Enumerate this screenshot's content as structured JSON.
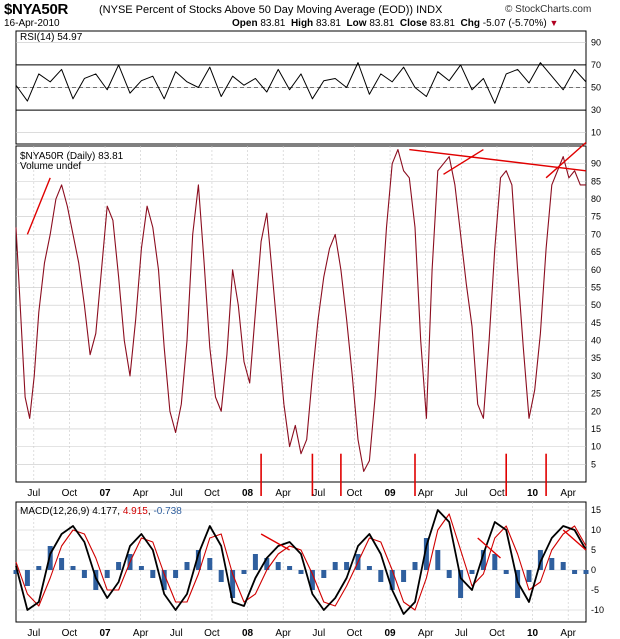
{
  "header": {
    "symbol": "$NYA50R",
    "description": "(NYSE Percent of Stocks Above 50 Day Moving Average (EOD))  INDX",
    "date": "16-Apr-2010",
    "open_label": "Open",
    "open": "83.81",
    "high_label": "High",
    "high": "83.81",
    "low_label": "Low",
    "low": "83.81",
    "close_label": "Close",
    "close": "83.81",
    "chg_label": "Chg",
    "chg": "-5.07 (-5.70%)",
    "copyright": "© StockCharts.com"
  },
  "colors": {
    "price_line": "#8b0d1f",
    "annotation": "#e00000",
    "macd_line": "#000000",
    "signal_line": "#d00000",
    "histogram": "#2f5f9e",
    "grid": "#c8c8c8"
  },
  "chart_data": [
    {
      "type": "line",
      "panel": "RSI",
      "label": "RSI(14) 54.97",
      "ylim": [
        0,
        100
      ],
      "y_ticks": [
        10,
        30,
        50,
        70,
        90
      ],
      "reference_lines": [
        30,
        50,
        70
      ],
      "series": [
        {
          "x": [
            0,
            2,
            4,
            6,
            8,
            10,
            12,
            14,
            16,
            18,
            20,
            22,
            24,
            26,
            28,
            30,
            32,
            34,
            36,
            38,
            40,
            42,
            44,
            46,
            48,
            50,
            52,
            54,
            56,
            58,
            60,
            62,
            64,
            66,
            68,
            70,
            72,
            74,
            76,
            78,
            80,
            82,
            84,
            86,
            88,
            90,
            92,
            94,
            96,
            98,
            100
          ],
          "values": [
            52,
            38,
            62,
            55,
            66,
            40,
            58,
            62,
            48,
            70,
            45,
            56,
            60,
            40,
            64,
            55,
            50,
            68,
            42,
            60,
            52,
            58,
            46,
            66,
            48,
            62,
            40,
            56,
            58,
            50,
            72,
            44,
            62,
            55,
            68,
            50,
            42,
            64,
            56,
            70,
            48,
            58,
            36,
            62,
            66,
            54,
            72,
            60,
            48,
            66,
            55
          ]
        }
      ]
    },
    {
      "type": "line",
      "panel": "price",
      "label": "$NYA50R (Daily) 83.81",
      "legend": "Volume undef",
      "ylim": [
        0,
        95
      ],
      "y_ticks": [
        5,
        10,
        15,
        20,
        25,
        30,
        35,
        40,
        45,
        50,
        55,
        60,
        65,
        70,
        75,
        80,
        85,
        90
      ],
      "x_ticks": [
        "Jul",
        "Oct",
        "07",
        "Apr",
        "Jul",
        "Oct",
        "08",
        "Apr",
        "Jul",
        "Oct",
        "09",
        "Apr",
        "Jul",
        "Oct",
        "10",
        "Apr"
      ],
      "series": [
        {
          "x": [
            0,
            0.8,
            1.6,
            2.4,
            3.2,
            4,
            5,
            6,
            7,
            8,
            9,
            10,
            11,
            12,
            13,
            14,
            15,
            16,
            17,
            18,
            19,
            20,
            21,
            22,
            23,
            24,
            25,
            26,
            27,
            28,
            29,
            30,
            31,
            32,
            33,
            34,
            35,
            36,
            37,
            38,
            39,
            40,
            41,
            42,
            43,
            44,
            45,
            46,
            47,
            48,
            49,
            50,
            51,
            52,
            53,
            54,
            55,
            56,
            57,
            58,
            59,
            60,
            61,
            62,
            63,
            64,
            65,
            66,
            67,
            68,
            69,
            70,
            71,
            72,
            73,
            74,
            75,
            76,
            77,
            78,
            79,
            80,
            81,
            82,
            83,
            84,
            85,
            86,
            87,
            88,
            89,
            90,
            91,
            92,
            93,
            94,
            95,
            96,
            97,
            98,
            99,
            100
          ],
          "values": [
            72,
            48,
            24,
            18,
            30,
            48,
            62,
            70,
            80,
            84,
            78,
            70,
            62,
            50,
            36,
            42,
            60,
            78,
            74,
            58,
            40,
            30,
            46,
            66,
            78,
            72,
            60,
            38,
            20,
            14,
            22,
            40,
            70,
            84,
            62,
            38,
            24,
            20,
            36,
            60,
            50,
            34,
            28,
            48,
            68,
            76,
            58,
            40,
            22,
            10,
            16,
            8,
            12,
            30,
            46,
            58,
            66,
            70,
            60,
            46,
            30,
            12,
            3,
            6,
            24,
            48,
            72,
            90,
            94,
            88,
            86,
            72,
            40,
            18,
            60,
            88,
            90,
            92,
            84,
            70,
            56,
            44,
            22,
            18,
            40,
            66,
            86,
            88,
            84,
            60,
            38,
            18,
            26,
            42,
            66,
            84,
            88,
            92,
            86,
            88,
            84,
            84
          ]
        }
      ],
      "annotations": [
        {
          "kind": "trendline",
          "from": [
            2,
            70
          ],
          "to": [
            6,
            86
          ]
        },
        {
          "kind": "trendline",
          "from": [
            69,
            94
          ],
          "to": [
            100,
            88
          ]
        },
        {
          "kind": "trendline",
          "from": [
            75,
            87
          ],
          "to": [
            82,
            94
          ]
        },
        {
          "kind": "trendline",
          "from": [
            93,
            86
          ],
          "to": [
            100,
            96
          ]
        },
        {
          "kind": "vertical_marker",
          "x": 43
        },
        {
          "kind": "vertical_marker",
          "x": 52
        },
        {
          "kind": "vertical_marker",
          "x": 57
        },
        {
          "kind": "vertical_marker",
          "x": 70
        },
        {
          "kind": "vertical_marker",
          "x": 86
        },
        {
          "kind": "vertical_marker",
          "x": 93
        }
      ]
    },
    {
      "type": "line",
      "panel": "MACD",
      "label_prefix": "MACD(12,26,9)",
      "label_macd": "4.177",
      "label_signal": "4.915",
      "label_hist": "-0.738",
      "ylim": [
        -13,
        17
      ],
      "y_ticks": [
        -10,
        -5,
        0,
        5,
        10,
        15
      ],
      "x_ticks": [
        "Jul",
        "Oct",
        "07",
        "Apr",
        "Jul",
        "Oct",
        "08",
        "Apr",
        "Jul",
        "Oct",
        "09",
        "Apr",
        "Jul",
        "Oct",
        "10",
        "Apr"
      ],
      "series": [
        {
          "name": "MACD",
          "x": [
            0,
            2,
            4,
            6,
            8,
            10,
            12,
            14,
            16,
            18,
            20,
            22,
            24,
            26,
            28,
            30,
            32,
            34,
            36,
            38,
            40,
            42,
            44,
            46,
            48,
            50,
            52,
            54,
            56,
            58,
            60,
            62,
            64,
            66,
            68,
            70,
            72,
            74,
            76,
            78,
            80,
            82,
            84,
            86,
            88,
            90,
            92,
            94,
            96,
            98,
            100
          ],
          "values": [
            1,
            -10,
            -8,
            4,
            9,
            11,
            7,
            -2,
            -7,
            -3,
            6,
            9,
            5,
            -6,
            -10,
            -6,
            4,
            11,
            6,
            -8,
            -9,
            -2,
            3,
            6,
            7,
            4,
            -6,
            -10,
            -7,
            -2,
            6,
            9,
            4,
            -5,
            -11,
            -8,
            6,
            15,
            12,
            -2,
            -5,
            4,
            12,
            10,
            -3,
            -8,
            2,
            8,
            11,
            10,
            5
          ]
        },
        {
          "name": "Signal",
          "x": [
            0,
            2,
            4,
            6,
            8,
            10,
            12,
            14,
            16,
            18,
            20,
            22,
            24,
            26,
            28,
            30,
            32,
            34,
            36,
            38,
            40,
            42,
            44,
            46,
            48,
            50,
            52,
            54,
            56,
            58,
            60,
            62,
            64,
            66,
            68,
            70,
            72,
            74,
            76,
            78,
            80,
            82,
            84,
            86,
            88,
            90,
            92,
            94,
            96,
            98,
            100
          ],
          "values": [
            2,
            -6,
            -9,
            -2,
            6,
            10,
            9,
            3,
            -5,
            -5,
            2,
            8,
            7,
            -1,
            -8,
            -8,
            -1,
            8,
            9,
            -1,
            -8,
            -6,
            0,
            4,
            6,
            5,
            -1,
            -8,
            -9,
            -4,
            2,
            8,
            7,
            0,
            -8,
            -10,
            -2,
            10,
            14,
            5,
            -4,
            -1,
            8,
            11,
            4,
            -5,
            -3,
            5,
            9,
            11,
            6
          ]
        }
      ],
      "annotations": [
        {
          "kind": "trendline",
          "from": [
            43,
            9
          ],
          "to": [
            48,
            5
          ]
        },
        {
          "kind": "trendline",
          "from": [
            81,
            8
          ],
          "to": [
            85,
            3
          ]
        },
        {
          "kind": "trendline",
          "from": [
            96,
            10
          ],
          "to": [
            100,
            5
          ]
        }
      ]
    }
  ]
}
